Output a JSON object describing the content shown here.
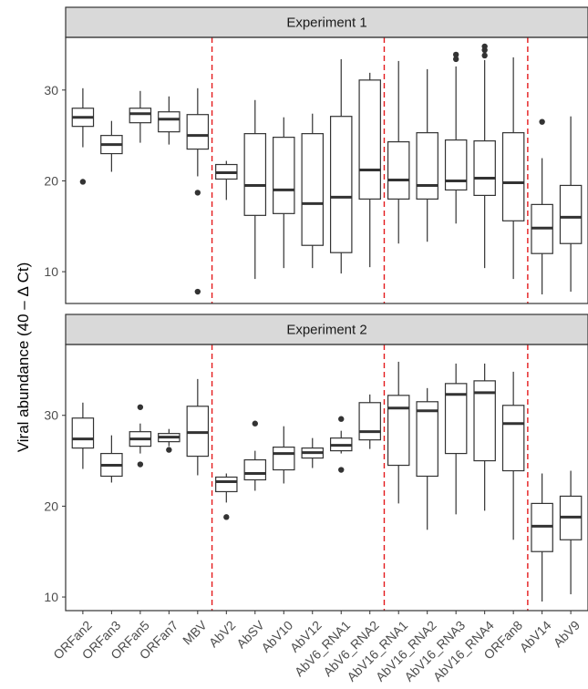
{
  "chart_data": {
    "type": "boxplot",
    "ylabel": "Viral abundance (40 – Δ Ct)",
    "categories": [
      "ORFan2",
      "ORFan3",
      "ORFan5",
      "ORFan7",
      "MBV",
      "AbV2",
      "AbSV",
      "AbV10",
      "AbV12",
      "AbV6_RNA1",
      "AbV6_RNA2",
      "AbV16_RNA1",
      "AbV16_RNA2",
      "AbV16_RNA3",
      "AbV16_RNA4",
      "ORFan8",
      "AbV14",
      "AbV9"
    ],
    "yticks": [
      10,
      20,
      30
    ],
    "separators_after": [
      "MBV",
      "AbV6_RNA2",
      "ORFan8"
    ],
    "separator_color": "#e41a1c",
    "panels": [
      {
        "title": "Experiment 1",
        "ylim": [
          6.5,
          35.8
        ],
        "boxes": [
          {
            "min": 23.7,
            "q1": 26.0,
            "median": 27.0,
            "q3": 28.0,
            "max": 30.2,
            "outliers": [
              19.9
            ]
          },
          {
            "min": 21.0,
            "q1": 23.0,
            "median": 24.0,
            "q3": 25.0,
            "max": 26.6,
            "outliers": []
          },
          {
            "min": 24.2,
            "q1": 26.4,
            "median": 27.4,
            "q3": 28.0,
            "max": 29.9,
            "outliers": []
          },
          {
            "min": 24.0,
            "q1": 25.4,
            "median": 26.8,
            "q3": 27.6,
            "max": 29.3,
            "outliers": []
          },
          {
            "min": 20.5,
            "q1": 23.5,
            "median": 25.0,
            "q3": 27.3,
            "max": 30.2,
            "outliers": [
              18.7,
              7.8
            ]
          },
          {
            "min": 17.9,
            "q1": 20.2,
            "median": 20.9,
            "q3": 21.8,
            "max": 22.2,
            "outliers": []
          },
          {
            "min": 9.2,
            "q1": 16.2,
            "median": 19.5,
            "q3": 25.2,
            "max": 28.9,
            "outliers": []
          },
          {
            "min": 10.4,
            "q1": 16.4,
            "median": 19.0,
            "q3": 24.8,
            "max": 27.0,
            "outliers": []
          },
          {
            "min": 10.4,
            "q1": 12.9,
            "median": 17.5,
            "q3": 25.2,
            "max": 27.4,
            "outliers": []
          },
          {
            "min": 9.8,
            "q1": 12.1,
            "median": 18.2,
            "q3": 27.1,
            "max": 33.4,
            "outliers": []
          },
          {
            "min": 10.5,
            "q1": 18.0,
            "median": 21.2,
            "q3": 31.1,
            "max": 31.9,
            "outliers": []
          },
          {
            "min": 13.1,
            "q1": 18.0,
            "median": 20.1,
            "q3": 24.3,
            "max": 33.2,
            "outliers": []
          },
          {
            "min": 13.3,
            "q1": 18.0,
            "median": 19.5,
            "q3": 25.3,
            "max": 32.3,
            "outliers": []
          },
          {
            "min": 15.3,
            "q1": 19.0,
            "median": 20.0,
            "q3": 24.5,
            "max": 32.6,
            "outliers": [
              33.4,
              33.9
            ]
          },
          {
            "min": 10.4,
            "q1": 18.4,
            "median": 20.3,
            "q3": 24.4,
            "max": 33.3,
            "outliers": [
              33.8,
              34.4,
              34.8
            ]
          },
          {
            "min": 9.2,
            "q1": 15.6,
            "median": 19.8,
            "q3": 25.3,
            "max": 33.6,
            "outliers": []
          },
          {
            "min": 7.5,
            "q1": 12.0,
            "median": 14.8,
            "q3": 17.4,
            "max": 22.5,
            "outliers": [
              26.5
            ]
          },
          {
            "min": 7.8,
            "q1": 13.1,
            "median": 16.0,
            "q3": 19.5,
            "max": 27.1,
            "outliers": []
          }
        ]
      },
      {
        "title": "Experiment 2",
        "ylim": [
          8.5,
          37.8
        ],
        "boxes": [
          {
            "min": 24.1,
            "q1": 26.4,
            "median": 27.4,
            "q3": 29.7,
            "max": 31.4,
            "outliers": []
          },
          {
            "min": 22.6,
            "q1": 23.3,
            "median": 24.5,
            "q3": 25.8,
            "max": 27.8,
            "outliers": []
          },
          {
            "min": 25.8,
            "q1": 26.6,
            "median": 27.4,
            "q3": 28.2,
            "max": 29.1,
            "outliers": [
              30.9,
              24.6
            ]
          },
          {
            "min": 26.6,
            "q1": 27.1,
            "median": 27.6,
            "q3": 28.0,
            "max": 28.5,
            "outliers": [
              26.2
            ]
          },
          {
            "min": 23.4,
            "q1": 25.5,
            "median": 28.1,
            "q3": 31.0,
            "max": 34.0,
            "outliers": []
          },
          {
            "min": 20.4,
            "q1": 21.6,
            "median": 22.7,
            "q3": 23.2,
            "max": 23.6,
            "outliers": [
              18.8
            ]
          },
          {
            "min": 21.7,
            "q1": 22.9,
            "median": 23.6,
            "q3": 25.1,
            "max": 26.1,
            "outliers": [
              29.1
            ]
          },
          {
            "min": 22.5,
            "q1": 24.0,
            "median": 25.8,
            "q3": 26.5,
            "max": 28.8,
            "outliers": []
          },
          {
            "min": 24.2,
            "q1": 25.3,
            "median": 25.9,
            "q3": 26.4,
            "max": 27.5,
            "outliers": []
          },
          {
            "min": 25.8,
            "q1": 26.1,
            "median": 26.7,
            "q3": 27.5,
            "max": 28.3,
            "outliers": [
              29.6,
              24.0
            ]
          },
          {
            "min": 26.3,
            "q1": 27.3,
            "median": 28.2,
            "q3": 31.4,
            "max": 32.3,
            "outliers": []
          },
          {
            "min": 20.3,
            "q1": 24.5,
            "median": 30.8,
            "q3": 32.2,
            "max": 35.9,
            "outliers": []
          },
          {
            "min": 17.4,
            "q1": 23.3,
            "median": 30.5,
            "q3": 31.5,
            "max": 33.0,
            "outliers": []
          },
          {
            "min": 19.1,
            "q1": 25.8,
            "median": 32.3,
            "q3": 33.5,
            "max": 35.7,
            "outliers": []
          },
          {
            "min": 19.5,
            "q1": 25.0,
            "median": 32.5,
            "q3": 33.8,
            "max": 35.7,
            "outliers": []
          },
          {
            "min": 16.3,
            "q1": 23.9,
            "median": 29.1,
            "q3": 31.1,
            "max": 34.8,
            "outliers": []
          },
          {
            "min": 9.5,
            "q1": 15.0,
            "median": 17.8,
            "q3": 20.3,
            "max": 23.6,
            "outliers": []
          },
          {
            "min": 10.3,
            "q1": 16.3,
            "median": 18.8,
            "q3": 21.1,
            "max": 23.9,
            "outliers": []
          }
        ]
      }
    ]
  }
}
